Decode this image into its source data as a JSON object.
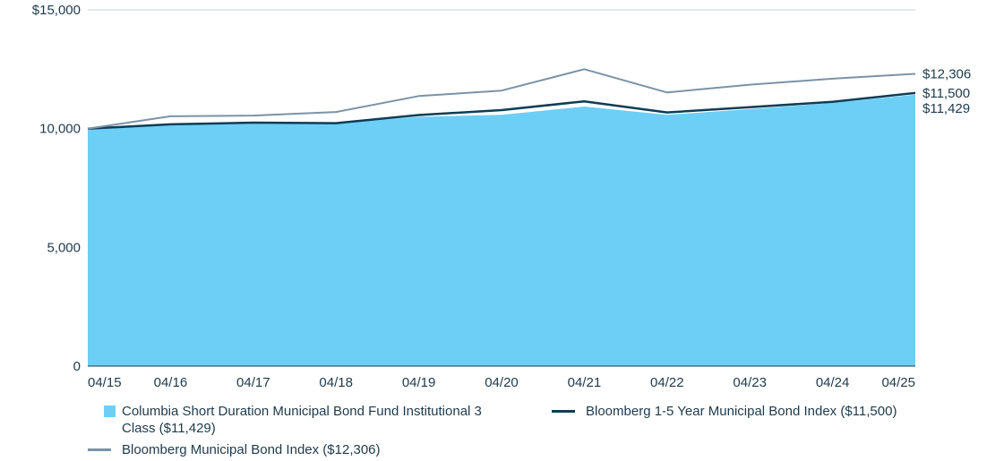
{
  "chart_data": {
    "type": "area",
    "categories": [
      "04/15",
      "04/16",
      "04/17",
      "04/18",
      "04/19",
      "04/20",
      "04/21",
      "04/22",
      "04/23",
      "04/24",
      "04/25"
    ],
    "y_ticks": [
      "$15,000",
      "10,000",
      "5,000",
      "0"
    ],
    "y_tick_values": [
      15000,
      10000,
      5000,
      0
    ],
    "ylim": [
      0,
      15000
    ],
    "grid": "horizontal",
    "legend_position": "bottom",
    "series": [
      {
        "name": "Columbia Short Duration Municipal Bond Fund Institutional 3 Class ($11,429)",
        "kind": "area",
        "color": "#6dcff6",
        "values": [
          10000,
          10150,
          10200,
          10220,
          10500,
          10580,
          10930,
          10580,
          10820,
          11080,
          11429
        ],
        "end_label": "$11,429"
      },
      {
        "name": "Bloomberg 1-5 Year Municipal Bond Index ($11,500)",
        "kind": "line",
        "color": "#0d3d56",
        "values": [
          10000,
          10180,
          10250,
          10230,
          10570,
          10780,
          11150,
          10680,
          10900,
          11130,
          11500
        ],
        "end_label": "$11,500"
      },
      {
        "name": "Bloomberg Municipal Bond Index ($12,306)",
        "kind": "line",
        "color": "#7a93a6",
        "values": [
          10000,
          10520,
          10550,
          10700,
          11370,
          11600,
          12500,
          11520,
          11850,
          12100,
          12306
        ],
        "end_label": "$12,306"
      }
    ]
  },
  "legend": {
    "fund_line1": "Columbia Short Duration Municipal Bond Fund Institutional 3",
    "fund_line2": "Class ($11,429)",
    "short_index": "Bloomberg 1-5 Year Municipal Bond Index ($11,500)",
    "broad_index": "Bloomberg Municipal Bond Index ($12,306)"
  }
}
